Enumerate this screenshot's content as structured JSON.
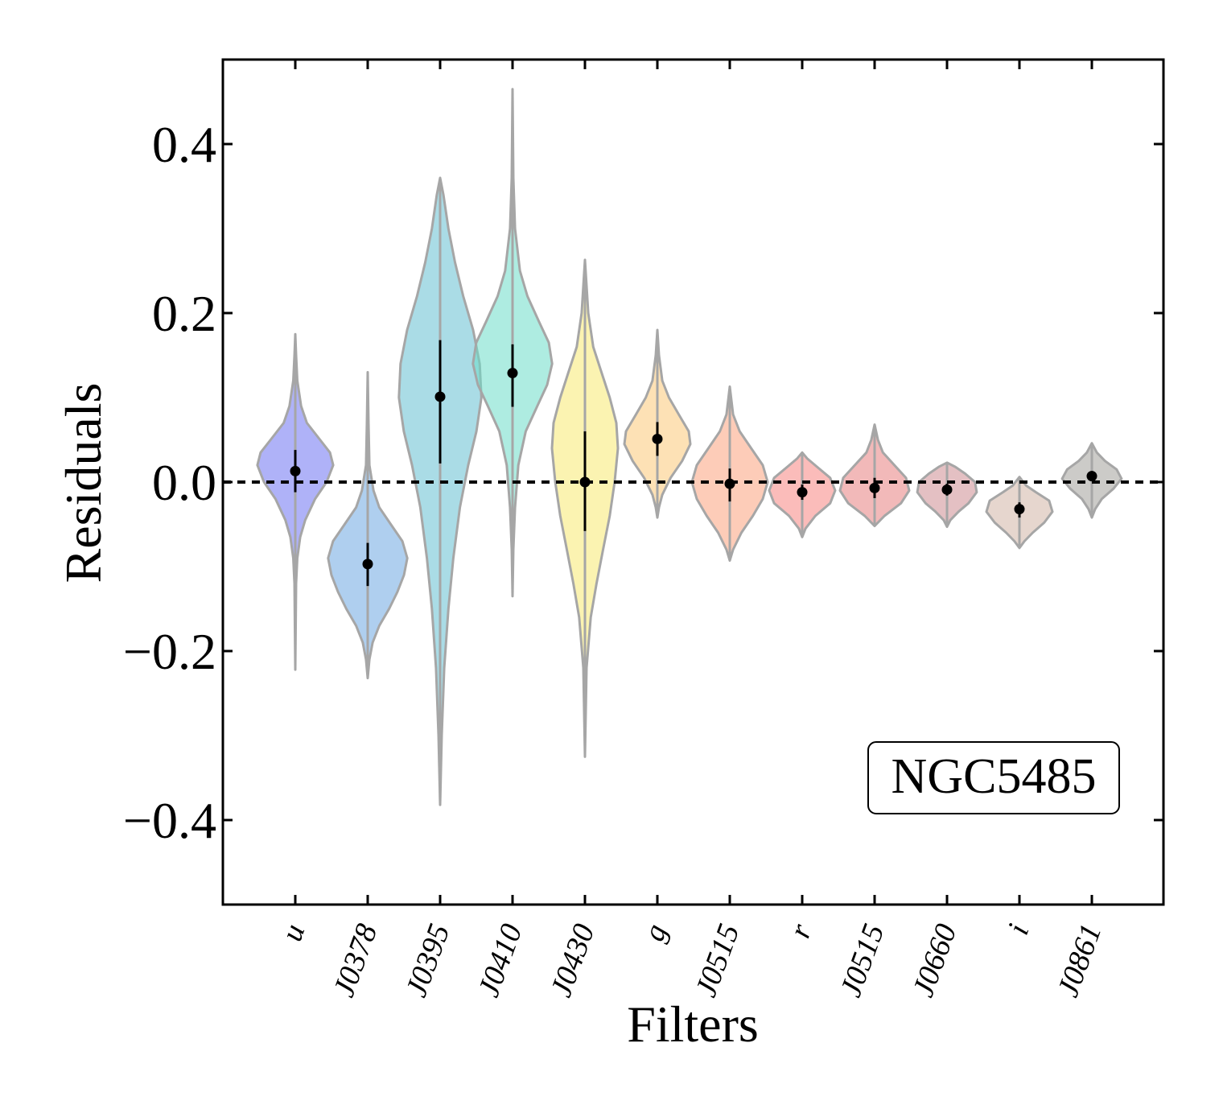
{
  "chart_data": {
    "type": "violin",
    "title": "",
    "xlabel": "Filters",
    "ylabel": "Residuals",
    "ylim": [
      -0.5,
      0.5
    ],
    "yticks": [
      -0.4,
      -0.2,
      0.0,
      0.2,
      0.4
    ],
    "ytick_labels": [
      "−0.4",
      "−0.2",
      "0.0",
      "0.2",
      "0.4"
    ],
    "reference_line": 0.0,
    "annotation": "NGC5485",
    "categories": [
      "u",
      "J0378",
      "J0395",
      "J0410",
      "J0430",
      "g",
      "J0515",
      "r",
      "J0515",
      "J0660",
      "i",
      "J0861"
    ],
    "violins": [
      {
        "filter": "u",
        "median": 0.013,
        "err_low": -0.012,
        "err_high": 0.038,
        "min": -0.222,
        "max": 0.175,
        "color": "#6e73f2",
        "profile": [
          [
            -0.222,
            0.0
          ],
          [
            -0.12,
            0.005
          ],
          [
            -0.09,
            0.012
          ],
          [
            -0.065,
            0.03
          ],
          [
            -0.045,
            0.06
          ],
          [
            -0.02,
            0.12
          ],
          [
            0.0,
            0.19
          ],
          [
            0.02,
            0.23
          ],
          [
            0.035,
            0.21
          ],
          [
            0.05,
            0.15
          ],
          [
            0.07,
            0.07
          ],
          [
            0.09,
            0.035
          ],
          [
            0.12,
            0.012
          ],
          [
            0.15,
            0.005
          ],
          [
            0.175,
            0.0
          ]
        ]
      },
      {
        "filter": "J0378",
        "median": -0.097,
        "err_low": -0.123,
        "err_high": -0.072,
        "min": -0.232,
        "max": 0.13,
        "color": "#6ea7e2",
        "profile": [
          [
            -0.232,
            0.0
          ],
          [
            -0.21,
            0.01
          ],
          [
            -0.19,
            0.03
          ],
          [
            -0.17,
            0.07
          ],
          [
            -0.15,
            0.13
          ],
          [
            -0.13,
            0.18
          ],
          [
            -0.11,
            0.22
          ],
          [
            -0.09,
            0.24
          ],
          [
            -0.07,
            0.21
          ],
          [
            -0.05,
            0.14
          ],
          [
            -0.03,
            0.07
          ],
          [
            -0.01,
            0.035
          ],
          [
            0.02,
            0.01
          ],
          [
            0.07,
            0.005
          ],
          [
            0.13,
            0.0
          ]
        ]
      },
      {
        "filter": "J0395",
        "median": 0.101,
        "err_low": 0.022,
        "err_high": 0.168,
        "min": -0.382,
        "max": 0.36,
        "color": "#64bfd1",
        "profile": [
          [
            -0.382,
            0.0
          ],
          [
            -0.3,
            0.01
          ],
          [
            -0.22,
            0.025
          ],
          [
            -0.15,
            0.05
          ],
          [
            -0.09,
            0.08
          ],
          [
            -0.03,
            0.12
          ],
          [
            0.02,
            0.17
          ],
          [
            0.06,
            0.22
          ],
          [
            0.1,
            0.25
          ],
          [
            0.14,
            0.24
          ],
          [
            0.18,
            0.2
          ],
          [
            0.22,
            0.14
          ],
          [
            0.26,
            0.09
          ],
          [
            0.3,
            0.05
          ],
          [
            0.34,
            0.02
          ],
          [
            0.36,
            0.0
          ]
        ]
      },
      {
        "filter": "J0410",
        "median": 0.129,
        "err_low": 0.089,
        "err_high": 0.163,
        "min": -0.135,
        "max": 0.465,
        "color": "#6bdcc8",
        "profile": [
          [
            -0.135,
            0.0
          ],
          [
            -0.08,
            0.005
          ],
          [
            -0.03,
            0.015
          ],
          [
            0.02,
            0.035
          ],
          [
            0.06,
            0.08
          ],
          [
            0.09,
            0.15
          ],
          [
            0.115,
            0.21
          ],
          [
            0.14,
            0.24
          ],
          [
            0.165,
            0.22
          ],
          [
            0.19,
            0.16
          ],
          [
            0.22,
            0.09
          ],
          [
            0.25,
            0.045
          ],
          [
            0.3,
            0.015
          ],
          [
            0.36,
            0.005
          ],
          [
            0.465,
            0.0
          ]
        ]
      },
      {
        "filter": "J0430",
        "median": 0.0,
        "err_low": -0.058,
        "err_high": 0.06,
        "min": -0.325,
        "max": 0.263,
        "color": "#f7ea71",
        "profile": [
          [
            -0.325,
            0.0
          ],
          [
            -0.22,
            0.01
          ],
          [
            -0.16,
            0.035
          ],
          [
            -0.12,
            0.07
          ],
          [
            -0.08,
            0.11
          ],
          [
            -0.04,
            0.15
          ],
          [
            0.0,
            0.18
          ],
          [
            0.04,
            0.2
          ],
          [
            0.07,
            0.19
          ],
          [
            0.1,
            0.15
          ],
          [
            0.13,
            0.1
          ],
          [
            0.16,
            0.05
          ],
          [
            0.2,
            0.02
          ],
          [
            0.263,
            0.0
          ]
        ]
      },
      {
        "filter": "g",
        "median": 0.051,
        "err_low": 0.031,
        "err_high": 0.071,
        "min": -0.042,
        "max": 0.18,
        "color": "#fbc979",
        "profile": [
          [
            -0.042,
            0.0
          ],
          [
            -0.03,
            0.01
          ],
          [
            -0.015,
            0.03
          ],
          [
            0.005,
            0.08
          ],
          [
            0.025,
            0.15
          ],
          [
            0.045,
            0.2
          ],
          [
            0.06,
            0.19
          ],
          [
            0.08,
            0.13
          ],
          [
            0.1,
            0.07
          ],
          [
            0.12,
            0.03
          ],
          [
            0.15,
            0.01
          ],
          [
            0.18,
            0.0
          ]
        ]
      },
      {
        "filter": "J0515",
        "median": -0.002,
        "err_low": -0.023,
        "err_high": 0.016,
        "min": -0.093,
        "max": 0.113,
        "color": "#fba27e",
        "profile": [
          [
            -0.093,
            0.0
          ],
          [
            -0.08,
            0.02
          ],
          [
            -0.06,
            0.07
          ],
          [
            -0.04,
            0.14
          ],
          [
            -0.02,
            0.2
          ],
          [
            0.0,
            0.23
          ],
          [
            0.02,
            0.2
          ],
          [
            0.04,
            0.13
          ],
          [
            0.06,
            0.06
          ],
          [
            0.08,
            0.02
          ],
          [
            0.113,
            0.0
          ]
        ]
      },
      {
        "filter": "r",
        "median": -0.012,
        "err_low": -0.021,
        "err_high": -0.003,
        "min": -0.065,
        "max": 0.035,
        "color": "#f88582",
        "profile": [
          [
            -0.065,
            0.0
          ],
          [
            -0.055,
            0.02
          ],
          [
            -0.04,
            0.08
          ],
          [
            -0.025,
            0.17
          ],
          [
            -0.01,
            0.2
          ],
          [
            0.005,
            0.17
          ],
          [
            0.018,
            0.09
          ],
          [
            0.028,
            0.03
          ],
          [
            0.035,
            0.0
          ]
        ]
      },
      {
        "filter": "J0515",
        "median": -0.007,
        "err_low": -0.019,
        "err_high": 0.005,
        "min": -0.052,
        "max": 0.068,
        "color": "#e78080",
        "profile": [
          [
            -0.052,
            0.0
          ],
          [
            -0.04,
            0.06
          ],
          [
            -0.025,
            0.16
          ],
          [
            -0.01,
            0.21
          ],
          [
            0.005,
            0.19
          ],
          [
            0.02,
            0.12
          ],
          [
            0.035,
            0.05
          ],
          [
            0.05,
            0.02
          ],
          [
            0.068,
            0.0
          ]
        ]
      },
      {
        "filter": "J0660",
        "median": -0.009,
        "err_low": -0.016,
        "err_high": -0.002,
        "min": -0.053,
        "max": 0.023,
        "color": "#cd8d91",
        "profile": [
          [
            -0.053,
            0.0
          ],
          [
            -0.045,
            0.02
          ],
          [
            -0.035,
            0.07
          ],
          [
            -0.025,
            0.13
          ],
          [
            -0.012,
            0.18
          ],
          [
            0.0,
            0.17
          ],
          [
            0.01,
            0.11
          ],
          [
            0.018,
            0.05
          ],
          [
            0.023,
            0.0
          ]
        ]
      },
      {
        "filter": "i",
        "median": -0.032,
        "err_low": -0.042,
        "err_high": -0.024,
        "min": -0.078,
        "max": 0.006,
        "color": "#d2b5a6",
        "profile": [
          [
            -0.078,
            0.0
          ],
          [
            -0.07,
            0.03
          ],
          [
            -0.06,
            0.08
          ],
          [
            -0.048,
            0.15
          ],
          [
            -0.035,
            0.2
          ],
          [
            -0.022,
            0.18
          ],
          [
            -0.012,
            0.1
          ],
          [
            -0.004,
            0.04
          ],
          [
            0.006,
            0.0
          ]
        ]
      },
      {
        "filter": "J0861",
        "median": 0.007,
        "err_low": 0.001,
        "err_high": 0.013,
        "min": -0.042,
        "max": 0.046,
        "color": "#a3a09a",
        "profile": [
          [
            -0.042,
            0.0
          ],
          [
            -0.032,
            0.02
          ],
          [
            -0.02,
            0.06
          ],
          [
            -0.008,
            0.13
          ],
          [
            0.004,
            0.18
          ],
          [
            0.015,
            0.15
          ],
          [
            0.025,
            0.08
          ],
          [
            0.035,
            0.03
          ],
          [
            0.046,
            0.0
          ]
        ]
      }
    ]
  }
}
